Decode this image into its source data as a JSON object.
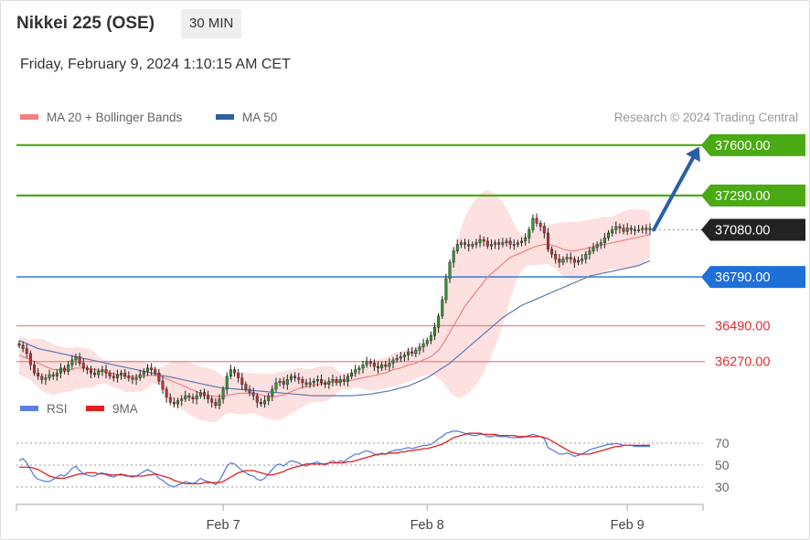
{
  "header": {
    "title": "Nikkei 225 (OSE)",
    "timeframe": "30 MIN",
    "datetime": "Friday, February 9, 2024 1:10:15 AM CET"
  },
  "legend": {
    "items": [
      {
        "label": "MA 20 + Bollinger Bands",
        "color": "#f08080"
      },
      {
        "label": "MA 50",
        "color": "#2f5f9f"
      }
    ],
    "source": "Research © 2024 Trading Central",
    "rsi_items": [
      {
        "label": "RSI",
        "color": "#5b7fe0"
      },
      {
        "label": "9MA",
        "color": "#e02020"
      }
    ]
  },
  "colors": {
    "up": "#2e9a2e",
    "down": "#d03030",
    "resistance": "#4aaa14",
    "support": "#1f6fd8",
    "minor": "#f08080",
    "arrow": "#2a5fa8",
    "current": "#222222"
  },
  "chart_data": [
    {
      "type": "candlestick",
      "ylim": [
        36100,
        37700
      ],
      "x_tick_labels": [
        "Feb 7",
        "Feb 8",
        "Feb 9"
      ],
      "x_tick_index": [
        54,
        108,
        161
      ],
      "levels": [
        {
          "value": 37600,
          "label": "37600.00",
          "kind": "resistance"
        },
        {
          "value": 37290,
          "label": "37290.00",
          "kind": "resistance"
        },
        {
          "value": 37080,
          "label": "37080.00",
          "kind": "current"
        },
        {
          "value": 36790,
          "label": "36790.00",
          "kind": "support"
        },
        {
          "value": 36490,
          "label": "36490.00",
          "kind": "minor"
        },
        {
          "value": 36270,
          "label": "36270.00",
          "kind": "minor"
        }
      ],
      "arrow": {
        "from": {
          "index": 168,
          "value": 37080
        },
        "to": {
          "index": 180,
          "value": 37590
        }
      },
      "close": [
        36370,
        36350,
        36320,
        36250,
        36200,
        36180,
        36160,
        36170,
        36190,
        36180,
        36200,
        36230,
        36210,
        36250,
        36280,
        36300,
        36260,
        36230,
        36220,
        36200,
        36190,
        36210,
        36220,
        36200,
        36180,
        36170,
        36190,
        36200,
        36180,
        36170,
        36160,
        36170,
        36190,
        36210,
        36230,
        36220,
        36200,
        36150,
        36100,
        36050,
        36020,
        36010,
        36030,
        36040,
        36060,
        36050,
        36040,
        36060,
        36080,
        36060,
        36040,
        36020,
        36000,
        36040,
        36100,
        36180,
        36220,
        36200,
        36170,
        36130,
        36100,
        36080,
        36060,
        36020,
        36010,
        36030,
        36060,
        36100,
        36140,
        36150,
        36130,
        36160,
        36180,
        36170,
        36160,
        36140,
        36130,
        36140,
        36150,
        36160,
        36140,
        36130,
        36150,
        36160,
        36140,
        36160,
        36150,
        36180,
        36200,
        36220,
        36230,
        36250,
        36270,
        36260,
        36240,
        36230,
        36250,
        36240,
        36260,
        36280,
        36290,
        36300,
        36310,
        36330,
        36320,
        36340,
        36360,
        36380,
        36400,
        36430,
        36480,
        36550,
        36650,
        36780,
        36880,
        36950,
        36990,
        37000,
        36990,
        36980,
        36990,
        37000,
        37020,
        37010,
        36980,
        36990,
        37000,
        36990,
        37000,
        37010,
        36990,
        36990,
        37000,
        37010,
        37030,
        37080,
        37150,
        37120,
        37100,
        37060,
        36960,
        36930,
        36900,
        36880,
        36900,
        36910,
        36900,
        36880,
        36890,
        36900,
        36930,
        36950,
        36970,
        36990,
        37000,
        37030,
        37060,
        37080,
        37100,
        37090,
        37070,
        37090,
        37080,
        37080,
        37080,
        37090,
        37080,
        37090
      ],
      "series": [
        {
          "name": "MA 20",
          "values": [
            36310,
            36300,
            36290,
            36280,
            36270,
            36260,
            36250,
            36240,
            36230,
            36220,
            36220,
            36220,
            36220,
            36220,
            36220,
            36230,
            36230,
            36230,
            36230,
            36225,
            36220,
            36215,
            36210,
            36205,
            36200,
            36195,
            36190,
            36185,
            36180,
            36180,
            36180,
            36180,
            36180,
            36180,
            36185,
            36185,
            36185,
            36180,
            36175,
            36165,
            36155,
            36145,
            36135,
            36125,
            36115,
            36105,
            36095,
            36085,
            36075,
            36070,
            36065,
            36060,
            36055,
            36055,
            36055,
            36060,
            36065,
            36070,
            36075,
            36075,
            36075,
            36075,
            36075,
            36070,
            36065,
            36060,
            36055,
            36055,
            36055,
            36060,
            36065,
            36075,
            36085,
            36095,
            36105,
            36110,
            36115,
            36120,
            36125,
            36130,
            36135,
            36135,
            36140,
            36145,
            36145,
            36150,
            36150,
            36150,
            36155,
            36160,
            36165,
            36170,
            36175,
            36180,
            36185,
            36190,
            36195,
            36200,
            36210,
            36220,
            36225,
            36230,
            36240,
            36250,
            36255,
            36260,
            36270,
            36280,
            36290,
            36300,
            36320,
            36340,
            36370,
            36410,
            36450,
            36490,
            36530,
            36570,
            36610,
            36640,
            36670,
            36700,
            36730,
            36760,
            36790,
            36810,
            36830,
            36850,
            36870,
            36890,
            36910,
            36920,
            36930,
            36940,
            36950,
            36960,
            36970,
            36980,
            36985,
            36990,
            36990,
            36985,
            36980,
            36970,
            36960,
            36955,
            36950,
            36950,
            36955,
            36960,
            36965,
            36970,
            36975,
            36980,
            36985,
            36990,
            36995,
            37000,
            37005,
            37010,
            37015,
            37020,
            37025,
            37030,
            37035,
            37040,
            37045,
            37050
          ]
        },
        {
          "name": "MA 50",
          "values": [
            36400,
            36390,
            36380,
            36370,
            36360,
            36350,
            36345,
            36340,
            36335,
            36330,
            36325,
            36320,
            36315,
            36310,
            36305,
            36300,
            36295,
            36290,
            36285,
            36280,
            36275,
            36270,
            36265,
            36260,
            36255,
            36250,
            36245,
            36240,
            36235,
            36230,
            36225,
            36220,
            36215,
            36210,
            36205,
            36200,
            36195,
            36190,
            36185,
            36180,
            36175,
            36170,
            36165,
            36160,
            36155,
            36150,
            36145,
            36140,
            36135,
            36130,
            36125,
            36120,
            36115,
            36110,
            36108,
            36106,
            36104,
            36102,
            36100,
            36098,
            36096,
            36094,
            36092,
            36090,
            36088,
            36086,
            36084,
            36082,
            36080,
            36078,
            36076,
            36074,
            36072,
            36070,
            36068,
            36066,
            36064,
            36062,
            36060,
            36060,
            36060,
            36060,
            36060,
            36060,
            36060,
            36060,
            36060,
            36060,
            36060,
            36062,
            36064,
            36066,
            36068,
            36070,
            36074,
            36078,
            36082,
            36086,
            36090,
            36096,
            36102,
            36108,
            36114,
            36120,
            36130,
            36140,
            36150,
            36160,
            36170,
            36185,
            36200,
            36215,
            36230,
            36245,
            36260,
            36280,
            36300,
            36320,
            36340,
            36360,
            36380,
            36400,
            36420,
            36440,
            36460,
            36480,
            36500,
            36520,
            36540,
            36555,
            36570,
            36585,
            36600,
            36615,
            36625,
            36635,
            36645,
            36655,
            36665,
            36675,
            36685,
            36695,
            36705,
            36715,
            36725,
            36735,
            36745,
            36755,
            36765,
            36775,
            36785,
            36795,
            36800,
            36805,
            36810,
            36815,
            36820,
            36825,
            36830,
            36835,
            36840,
            36845,
            36850,
            36855,
            36860,
            36870,
            36880,
            36890
          ]
        }
      ]
    },
    {
      "type": "line",
      "ylim": [
        15,
        90
      ],
      "y_ticks": [
        30,
        50,
        70
      ],
      "series": [
        {
          "name": "RSI",
          "values": [
            54,
            56,
            52,
            46,
            40,
            37,
            36,
            35,
            35,
            37,
            39,
            41,
            40,
            43,
            47,
            49,
            45,
            42,
            41,
            40,
            40,
            42,
            43,
            41,
            40,
            39,
            41,
            42,
            40,
            40,
            39,
            40,
            42,
            44,
            46,
            44,
            42,
            38,
            36,
            33,
            31,
            30,
            32,
            33,
            35,
            34,
            33,
            35,
            38,
            36,
            35,
            34,
            32,
            36,
            42,
            49,
            52,
            51,
            48,
            45,
            43,
            41,
            40,
            37,
            36,
            38,
            42,
            46,
            50,
            51,
            49,
            52,
            54,
            53,
            52,
            50,
            49,
            51,
            52,
            53,
            51,
            50,
            52,
            54,
            52,
            54,
            53,
            56,
            58,
            60,
            60,
            62,
            63,
            62,
            60,
            59,
            61,
            60,
            62,
            63,
            64,
            64,
            65,
            66,
            65,
            66,
            67,
            68,
            68,
            69,
            71,
            74,
            76,
            79,
            80,
            81,
            81,
            80,
            79,
            78,
            77,
            77,
            78,
            78,
            76,
            76,
            77,
            76,
            76,
            76,
            75,
            75,
            75,
            75,
            76,
            77,
            78,
            77,
            76,
            74,
            66,
            64,
            62,
            60,
            60,
            61,
            60,
            58,
            59,
            60,
            62,
            64,
            65,
            66,
            67,
            68,
            69,
            69,
            70,
            69,
            68,
            68,
            68,
            67,
            67,
            67,
            67,
            67
          ]
        },
        {
          "name": "9MA",
          "values": [
            48,
            48,
            48,
            48,
            47,
            46,
            44,
            42,
            40,
            39,
            38,
            38,
            38,
            39,
            40,
            41,
            42,
            42,
            43,
            43,
            43,
            42,
            42,
            42,
            41,
            41,
            41,
            41,
            41,
            40,
            40,
            40,
            40,
            40,
            41,
            41,
            42,
            41,
            40,
            39,
            38,
            36,
            35,
            34,
            33,
            33,
            33,
            33,
            33,
            34,
            34,
            34,
            34,
            34,
            35,
            37,
            39,
            41,
            43,
            44,
            45,
            45,
            45,
            44,
            43,
            42,
            41,
            41,
            42,
            43,
            44,
            46,
            47,
            48,
            49,
            50,
            51,
            51,
            51,
            51,
            51,
            51,
            52,
            52,
            52,
            52,
            52,
            53,
            53,
            54,
            55,
            56,
            57,
            58,
            59,
            60,
            60,
            60,
            61,
            61,
            61,
            62,
            62,
            63,
            63,
            64,
            64,
            65,
            65,
            66,
            67,
            68,
            69,
            71,
            73,
            75,
            76,
            77,
            78,
            79,
            79,
            79,
            79,
            78,
            78,
            78,
            78,
            77,
            77,
            77,
            77,
            77,
            76,
            76,
            76,
            76,
            76,
            76,
            76,
            75,
            74,
            72,
            70,
            68,
            66,
            64,
            62,
            61,
            60,
            60,
            60,
            60,
            61,
            62,
            63,
            64,
            65,
            66,
            67,
            67,
            68,
            68,
            68,
            68,
            68,
            68,
            68,
            68
          ]
        }
      ]
    }
  ]
}
